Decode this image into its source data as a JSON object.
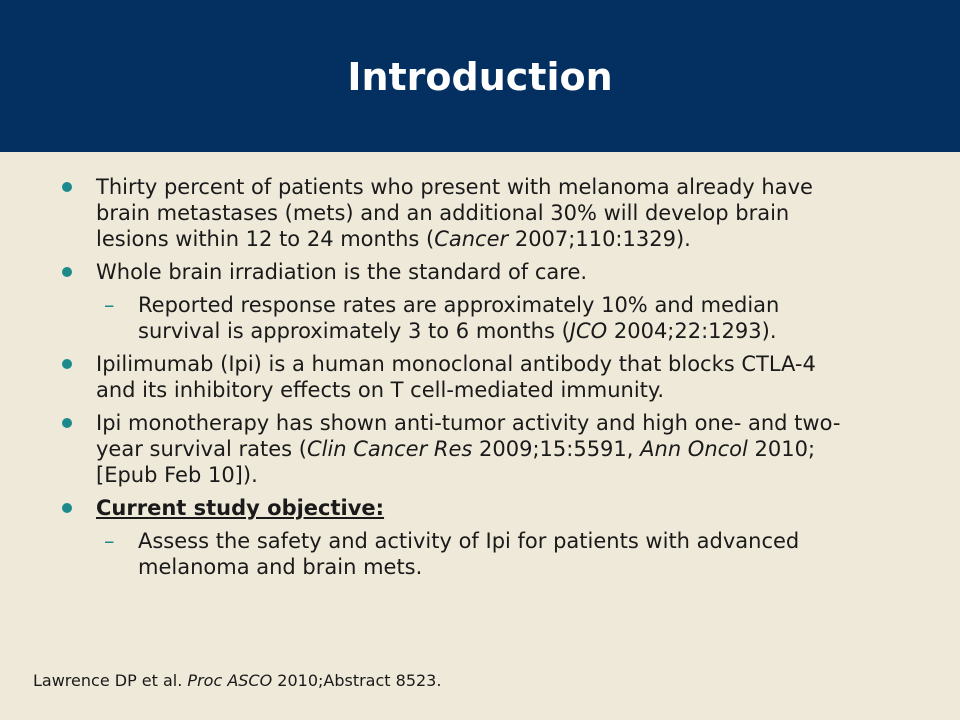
{
  "slide": {
    "title": "Introduction"
  },
  "bullets": {
    "b1": {
      "text1": "Thirty percent of patients who present with melanoma already have brain metastases (mets) and an additional 30% will develop brain lesions within 12 to 24 months (",
      "journal": "Cancer",
      "text2": " 2007;110:1329)."
    },
    "b2": {
      "text": "Whole brain irradiation is the standard of care."
    },
    "b2sub": {
      "dash": "–",
      "text1": "Reported response rates are approximately 10% and median survival is approximately 3 to 6 months (",
      "journal": "JCO",
      "text2": " 2004;22:1293)."
    },
    "b3": {
      "text": "Ipilimumab (Ipi) is a human monoclonal antibody that blocks CTLA-4 and its inhibitory effects on T cell-mediated immunity."
    },
    "b4": {
      "text1": "Ipi monotherapy has shown anti-tumor activity and high one- and two-year survival rates (",
      "journal1": "Clin Cancer Res",
      "text2": " 2009;15:5591, ",
      "journal2": "Ann Oncol",
      "text3": " 2010;[Epub Feb 10])."
    },
    "b5": {
      "text": "Current study objective:"
    },
    "b5sub": {
      "dash": "–",
      "text": "Assess the safety and activity of Ipi for patients with advanced melanoma and brain mets."
    }
  },
  "footnote": {
    "text1": "Lawrence DP et al. ",
    "journal": "Proc ASCO",
    "text2": " 2010;Abstract 8523."
  },
  "colors": {
    "header_bg": "#033060",
    "body_bg": "#efe9d9",
    "bullet": "#1c8a8c",
    "title_text": "#ffffff"
  }
}
